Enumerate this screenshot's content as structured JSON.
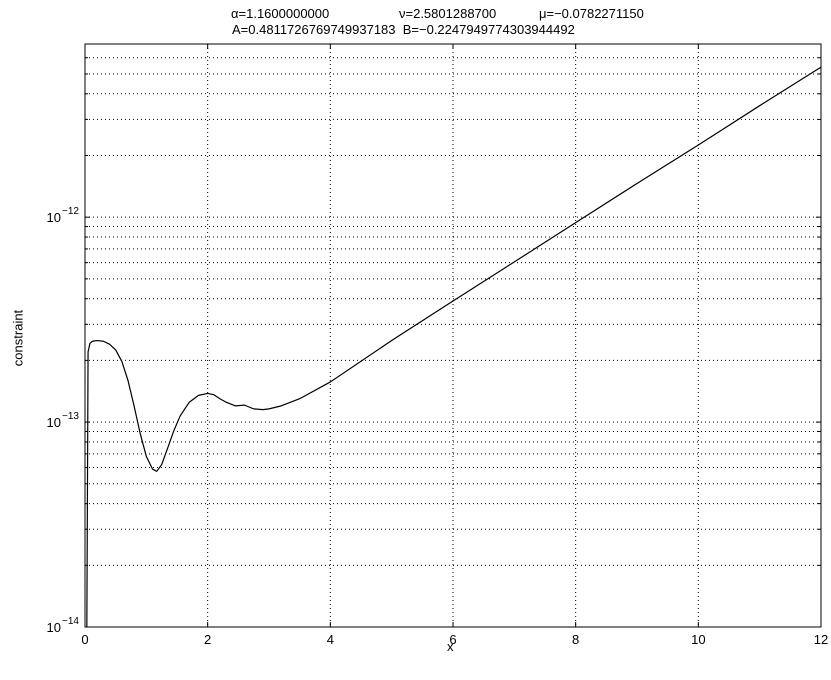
{
  "chart_data": {
    "type": "line",
    "title": {
      "alpha": "α=1.1600000000",
      "nu": "ν=2.5801288700",
      "mu": "μ=−0.0782271150",
      "line2": "A=0.4811726769749937183  B=−0.2247949774303944492"
    },
    "xlabel": "x",
    "ylabel": "constraint",
    "xlim": [
      0,
      12
    ],
    "ylim": [
      1e-14,
      7e-12
    ],
    "yscale": "log",
    "grid": true,
    "xticks": [
      0,
      2,
      4,
      6,
      8,
      10,
      12
    ],
    "xtick_labels": [
      "0",
      "2",
      "4",
      "6",
      "8",
      "10",
      "12"
    ],
    "yticks": [
      1e-14,
      1e-13,
      1e-12
    ],
    "ytick_labels": [
      {
        "base": "10",
        "exp": "−14"
      },
      {
        "base": "10",
        "exp": "−13"
      },
      {
        "base": "10",
        "exp": "−12"
      }
    ],
    "series": [
      {
        "color": "#000000",
        "x": [
          0.03,
          0.05,
          0.08,
          0.12,
          0.2,
          0.3,
          0.4,
          0.5,
          0.6,
          0.7,
          0.8,
          0.9,
          1.0,
          1.1,
          1.17,
          1.25,
          1.35,
          1.45,
          1.55,
          1.7,
          1.85,
          2.0,
          2.1,
          2.2,
          2.3,
          2.45,
          2.6,
          2.75,
          2.9,
          3.0,
          3.2,
          3.5,
          4.0,
          5.0,
          6.0,
          7.0,
          8.0,
          9.0,
          10.0,
          11.0,
          12.0
        ],
        "y": [
          1e-14,
          2.2e-13,
          2.42e-13,
          2.48e-13,
          2.5e-13,
          2.48e-13,
          2.4e-13,
          2.25e-13,
          1.98e-13,
          1.6e-13,
          1.2e-13,
          8.8e-14,
          6.8e-14,
          5.9e-14,
          5.75e-14,
          6.2e-14,
          7.5e-14,
          9.1e-14,
          1.07e-13,
          1.25e-13,
          1.35e-13,
          1.38e-13,
          1.36e-13,
          1.3e-13,
          1.25e-13,
          1.2e-13,
          1.21e-13,
          1.16e-13,
          1.15e-13,
          1.16e-13,
          1.2e-13,
          1.3e-13,
          1.57e-13,
          2.5e-13,
          3.9e-13,
          6.05e-13,
          9.4e-13,
          1.46e-12,
          2.25e-12,
          3.5e-12,
          5.4e-12
        ]
      }
    ]
  }
}
